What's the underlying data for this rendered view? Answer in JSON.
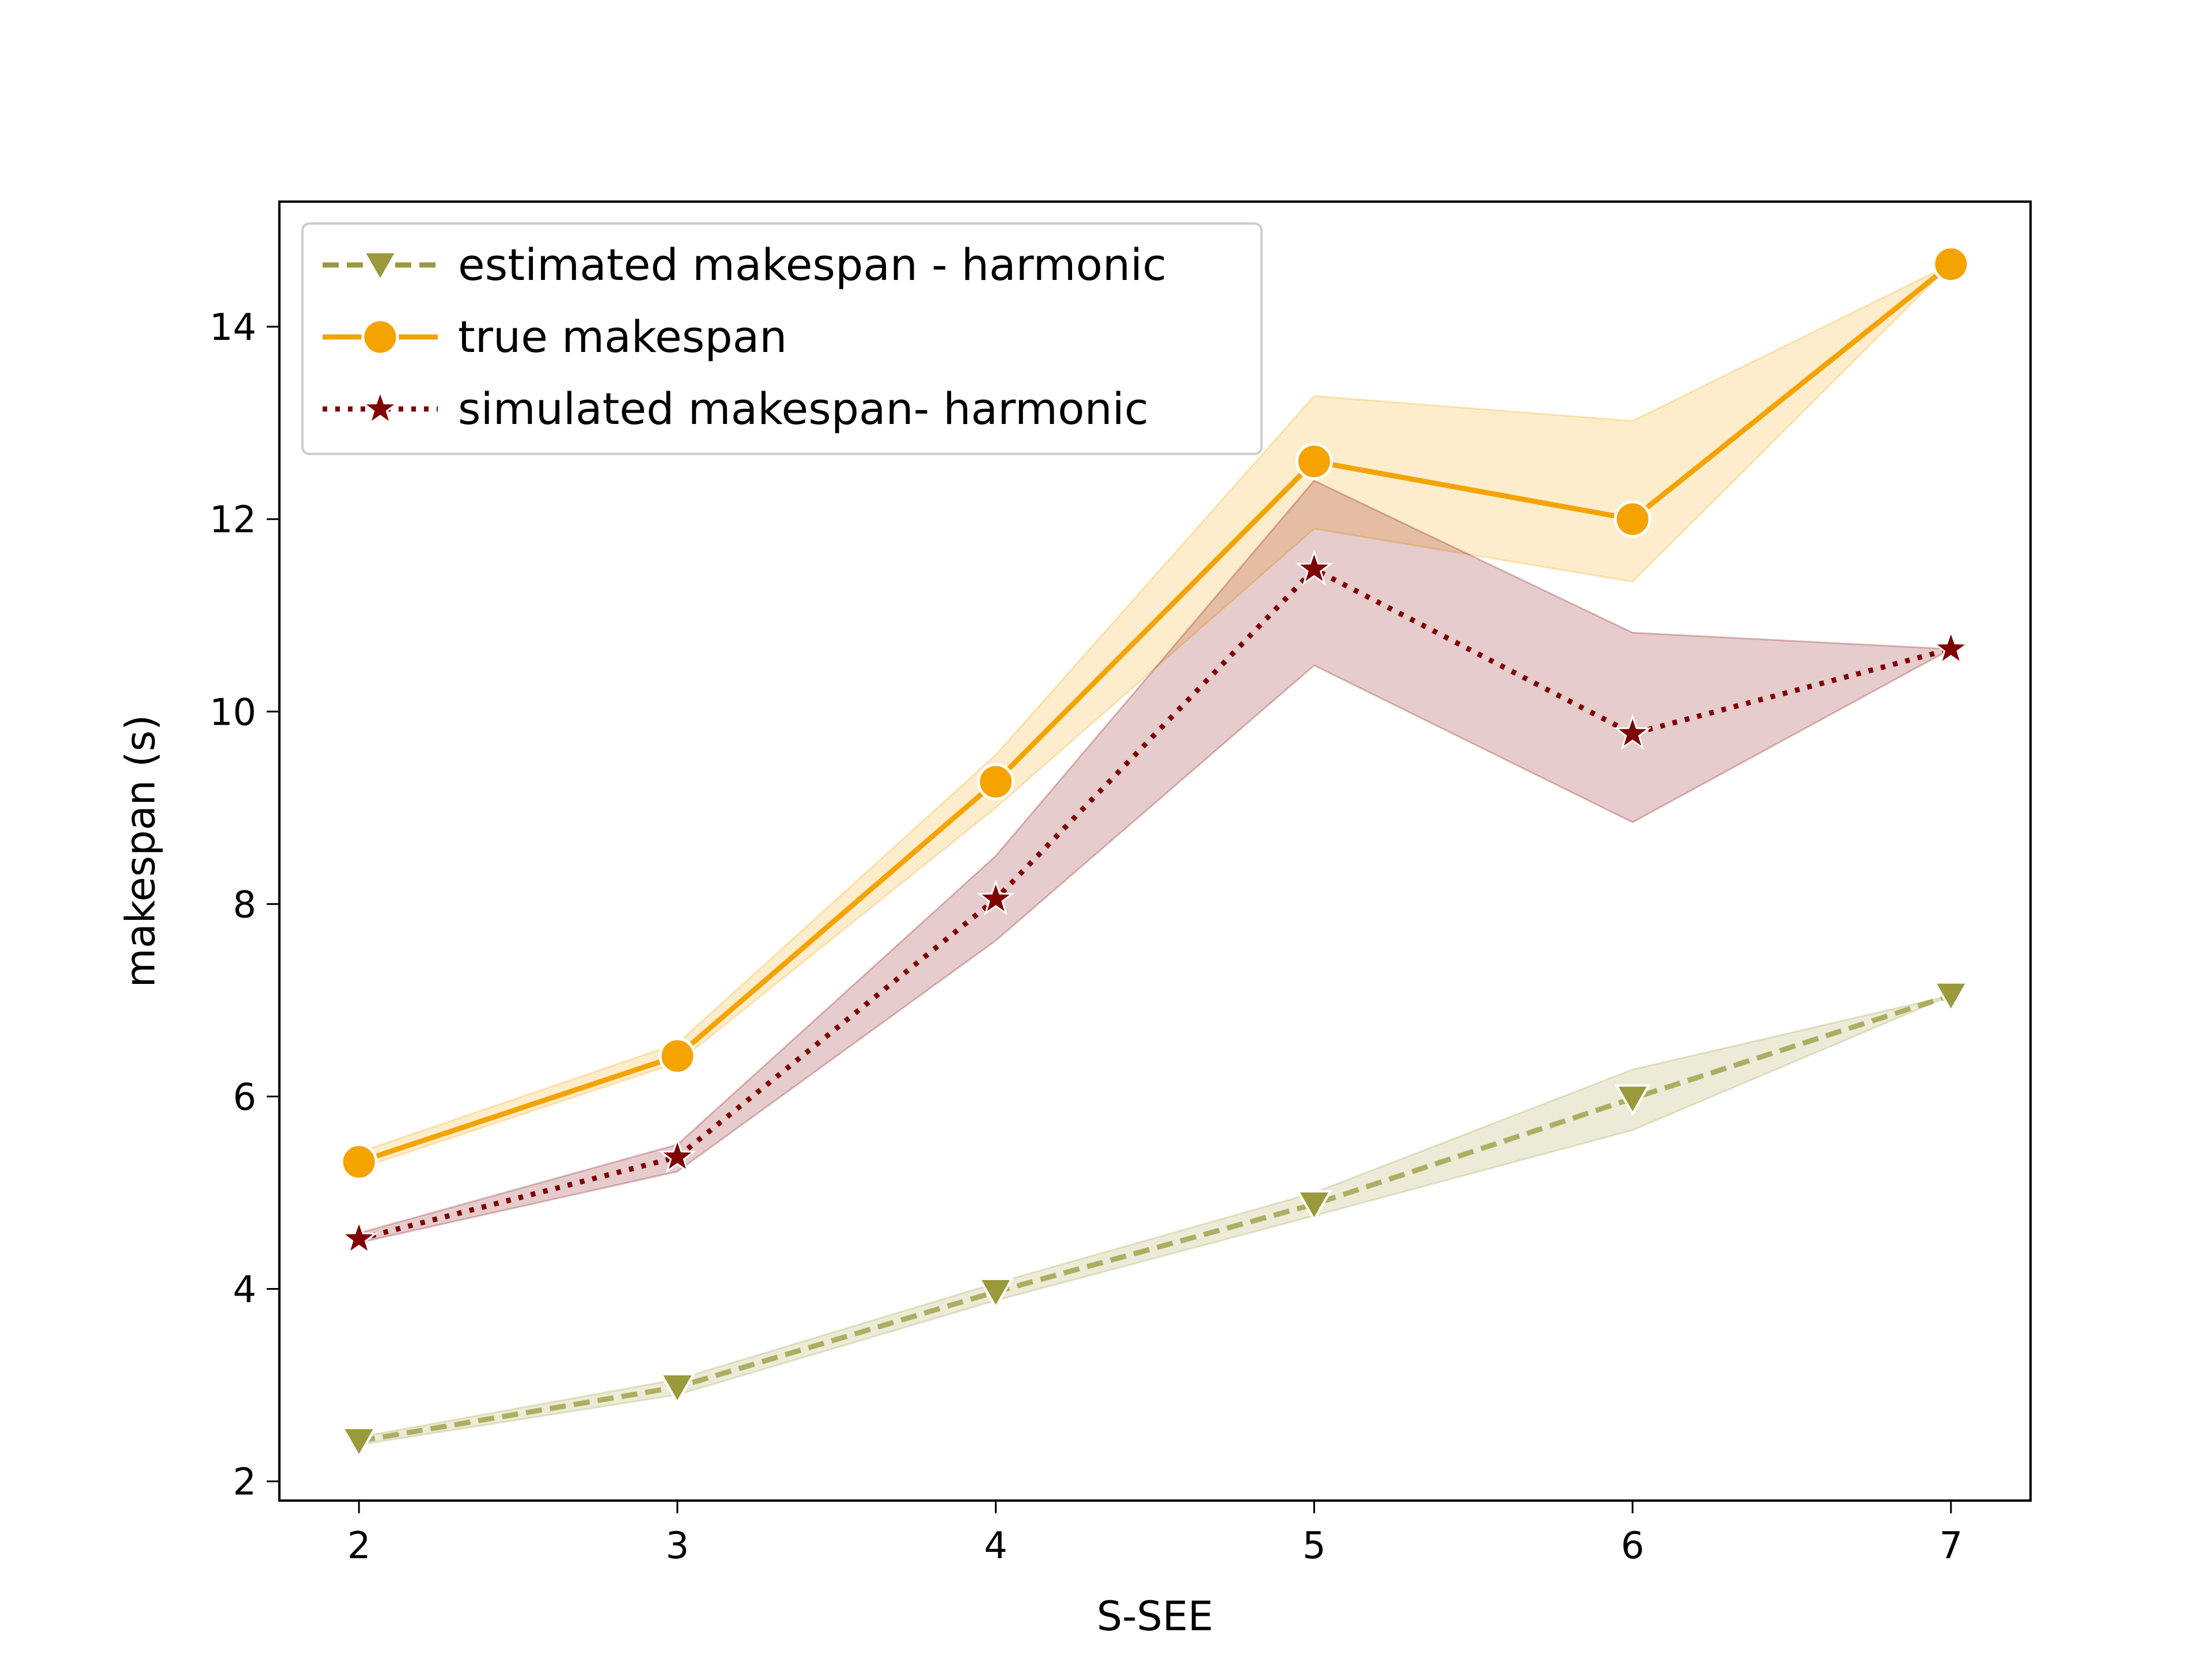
{
  "chart_data": {
    "type": "line",
    "xlabel": "S-SEE",
    "ylabel": "makespan (s)",
    "xlim": [
      1.75,
      7.25
    ],
    "ylim": [
      1.8,
      15.3
    ],
    "xticks": [
      2,
      3,
      4,
      5,
      6,
      7
    ],
    "yticks": [
      2,
      4,
      6,
      8,
      10,
      12,
      14
    ],
    "grid": false,
    "legend_position": "top-left",
    "series": [
      {
        "name": "estimated makespan - harmonic",
        "color": "#9a9a3c",
        "line_style": "dashed",
        "marker": "triangle-down",
        "x": [
          2,
          3,
          4,
          5,
          6,
          7
        ],
        "y": [
          2.42,
          2.98,
          3.97,
          4.88,
          5.98,
          7.05
        ],
        "band_low": [
          2.38,
          2.9,
          3.88,
          4.76,
          5.65,
          7.05
        ],
        "band_high": [
          2.46,
          3.06,
          4.06,
          5.0,
          6.28,
          7.05
        ]
      },
      {
        "name": "true makespan",
        "color": "#f5a300",
        "line_style": "solid",
        "marker": "circle",
        "x": [
          2,
          3,
          4,
          5,
          6,
          7
        ],
        "y": [
          5.32,
          6.42,
          9.27,
          12.6,
          12.0,
          14.65
        ],
        "band_low": [
          5.25,
          6.35,
          9.0,
          11.9,
          11.35,
          14.65
        ],
        "band_high": [
          5.42,
          6.55,
          9.55,
          13.28,
          13.02,
          14.65
        ]
      },
      {
        "name": "simulated makespan- harmonic",
        "color": "#800000",
        "line_style": "dotted",
        "marker": "star",
        "x": [
          2,
          3,
          4,
          5,
          6,
          7
        ],
        "y": [
          4.52,
          5.37,
          8.05,
          11.48,
          9.77,
          10.65
        ],
        "band_low": [
          4.48,
          5.22,
          7.62,
          10.48,
          8.85,
          10.65
        ],
        "band_high": [
          4.58,
          5.5,
          8.5,
          12.4,
          10.82,
          10.65
        ]
      }
    ]
  }
}
